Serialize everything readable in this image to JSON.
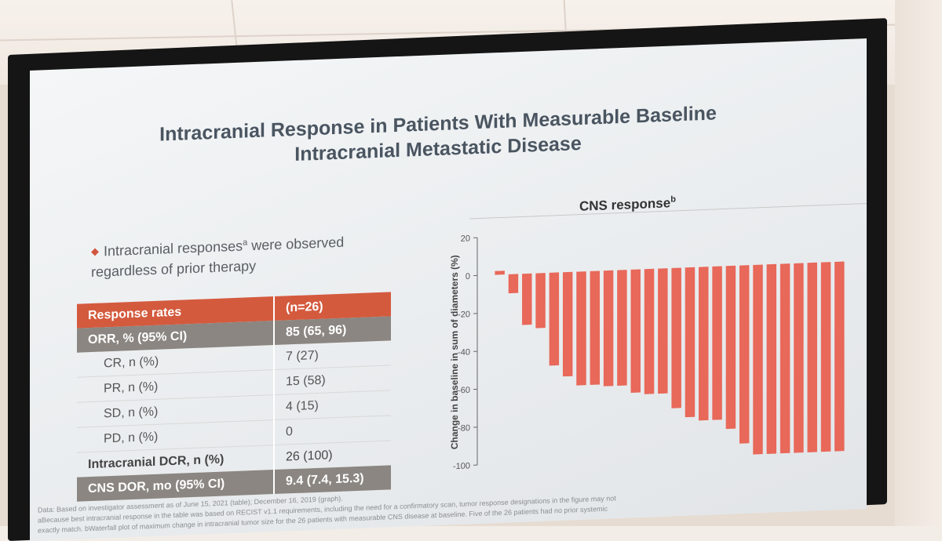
{
  "slide": {
    "title_line1": "Intracranial Response in Patients With Measurable Baseline",
    "title_line2": "Intracranial Metastatic Disease",
    "bullet_text": "Intracranial responses",
    "bullet_sup": "a",
    "bullet_rest": " were observed regardless of prior therapy"
  },
  "table": {
    "header": [
      "Response rates",
      "(n=26)"
    ],
    "rows": [
      {
        "label": "ORR, % (95% CI)",
        "value": "85 (65, 96)"
      },
      {
        "label": "CR, n (%)",
        "value": "7 (27)"
      },
      {
        "label": "PR, n (%)",
        "value": "15 (58)"
      },
      {
        "label": "SD, n (%)",
        "value": "4 (15)"
      },
      {
        "label": "PD, n (%)",
        "value": "0"
      },
      {
        "label": "Intracranial DCR, n (%)",
        "value": "26 (100)"
      },
      {
        "label": "CNS DOR, mo (95% CI)",
        "value": "9.4 (7.4, 15.3)"
      }
    ]
  },
  "chart_data": {
    "type": "bar",
    "title": "CNS response",
    "title_sup": "b",
    "ylabel": "Change in baseline in sum of diameters (%)",
    "xlabel": "",
    "ylim": [
      -100,
      20
    ],
    "yticks": [
      "20",
      "0",
      "-20",
      "-40",
      "-60",
      "-80",
      "-100"
    ],
    "ytick_values": [
      20,
      0,
      -20,
      -40,
      -60,
      -80,
      -100
    ],
    "values": [
      2,
      -10,
      -27,
      -29,
      -49,
      -55,
      -60,
      -60,
      -61,
      -61,
      -65,
      -66,
      -66,
      -74,
      -79,
      -81,
      -81,
      -86,
      -94,
      -100,
      -100,
      -100,
      -100,
      -100,
      -100,
      -100
    ],
    "bar_color": "#e8685a"
  },
  "footnote": {
    "line1": "Data: Based on investigator assessment as of June 15, 2021 (table); December 16, 2019 (graph).",
    "line2": "aBecause best intracranial response in the table was based on RECIST v1.1 requirements, including the need for a confirmatory scan, tumor response designations in the figure may not",
    "line3": "exactly match. bWaterfall plot of maximum change in intracranial tumor size for the 26 patients with measurable CNS disease at baseline. Five of the 26 patients had no prior systemic"
  }
}
